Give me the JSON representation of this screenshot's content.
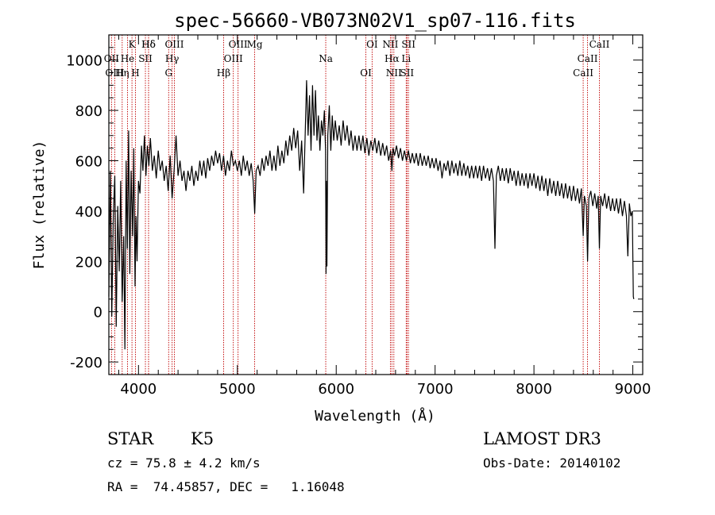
{
  "chart_data": {
    "type": "line",
    "title": "spec-56660-VB073N02V1_sp07-116.fits",
    "xlabel": "Wavelength (Å)",
    "ylabel": "Flux (relative)",
    "xlim": [
      3700,
      9100
    ],
    "ylim": [
      -250,
      1100
    ],
    "xticks": [
      4000,
      5000,
      6000,
      7000,
      8000,
      9000
    ],
    "yticks": [
      -200,
      0,
      200,
      400,
      600,
      800,
      1000
    ],
    "grid": false,
    "series": [
      {
        "name": "spectrum",
        "points": [
          [
            3700,
            60
          ],
          [
            3715,
            560
          ],
          [
            3730,
            -20
          ],
          [
            3745,
            380
          ],
          [
            3760,
            540
          ],
          [
            3775,
            -60
          ],
          [
            3790,
            420
          ],
          [
            3805,
            160
          ],
          [
            3820,
            520
          ],
          [
            3835,
            40
          ],
          [
            3850,
            300
          ],
          [
            3862,
            -150
          ],
          [
            3875,
            600
          ],
          [
            3887,
            250
          ],
          [
            3900,
            720
          ],
          [
            3912,
            150
          ],
          [
            3925,
            560
          ],
          [
            3940,
            300
          ],
          [
            3952,
            650
          ],
          [
            3965,
            100
          ],
          [
            3975,
            380
          ],
          [
            3985,
            200
          ],
          [
            4000,
            520
          ],
          [
            4015,
            470
          ],
          [
            4030,
            660
          ],
          [
            4045,
            560
          ],
          [
            4060,
            700
          ],
          [
            4075,
            540
          ],
          [
            4090,
            660
          ],
          [
            4105,
            580
          ],
          [
            4120,
            690
          ],
          [
            4140,
            560
          ],
          [
            4160,
            620
          ],
          [
            4180,
            530
          ],
          [
            4200,
            640
          ],
          [
            4220,
            560
          ],
          [
            4240,
            600
          ],
          [
            4260,
            520
          ],
          [
            4280,
            580
          ],
          [
            4300,
            480
          ],
          [
            4320,
            620
          ],
          [
            4340,
            450
          ],
          [
            4360,
            560
          ],
          [
            4380,
            700
          ],
          [
            4400,
            540
          ],
          [
            4420,
            600
          ],
          [
            4440,
            520
          ],
          [
            4460,
            560
          ],
          [
            4480,
            480
          ],
          [
            4500,
            560
          ],
          [
            4520,
            520
          ],
          [
            4540,
            580
          ],
          [
            4560,
            500
          ],
          [
            4580,
            560
          ],
          [
            4600,
            520
          ],
          [
            4620,
            600
          ],
          [
            4640,
            540
          ],
          [
            4660,
            600
          ],
          [
            4680,
            530
          ],
          [
            4700,
            610
          ],
          [
            4720,
            560
          ],
          [
            4740,
            620
          ],
          [
            4760,
            580
          ],
          [
            4780,
            640
          ],
          [
            4800,
            590
          ],
          [
            4820,
            630
          ],
          [
            4840,
            560
          ],
          [
            4860,
            620
          ],
          [
            4880,
            540
          ],
          [
            4900,
            600
          ],
          [
            4920,
            560
          ],
          [
            4940,
            640
          ],
          [
            4960,
            580
          ],
          [
            4980,
            600
          ],
          [
            5000,
            560
          ],
          [
            5020,
            600
          ],
          [
            5040,
            540
          ],
          [
            5060,
            620
          ],
          [
            5080,
            560
          ],
          [
            5100,
            600
          ],
          [
            5120,
            540
          ],
          [
            5140,
            590
          ],
          [
            5160,
            520
          ],
          [
            5175,
            390
          ],
          [
            5190,
            560
          ],
          [
            5210,
            580
          ],
          [
            5230,
            540
          ],
          [
            5250,
            610
          ],
          [
            5270,
            560
          ],
          [
            5290,
            620
          ],
          [
            5310,
            580
          ],
          [
            5330,
            640
          ],
          [
            5350,
            560
          ],
          [
            5370,
            620
          ],
          [
            5390,
            560
          ],
          [
            5410,
            660
          ],
          [
            5430,
            580
          ],
          [
            5450,
            640
          ],
          [
            5470,
            590
          ],
          [
            5490,
            680
          ],
          [
            5510,
            620
          ],
          [
            5530,
            700
          ],
          [
            5550,
            640
          ],
          [
            5570,
            730
          ],
          [
            5590,
            650
          ],
          [
            5610,
            720
          ],
          [
            5630,
            560
          ],
          [
            5650,
            680
          ],
          [
            5670,
            470
          ],
          [
            5690,
            760
          ],
          [
            5700,
            920
          ],
          [
            5715,
            700
          ],
          [
            5730,
            860
          ],
          [
            5745,
            640
          ],
          [
            5760,
            900
          ],
          [
            5775,
            700
          ],
          [
            5790,
            880
          ],
          [
            5805,
            680
          ],
          [
            5820,
            780
          ],
          [
            5835,
            640
          ],
          [
            5850,
            760
          ],
          [
            5865,
            700
          ],
          [
            5880,
            800
          ],
          [
            5892,
            640
          ],
          [
            5897,
            150
          ],
          [
            5900,
            520
          ],
          [
            5906,
            180
          ],
          [
            5915,
            700
          ],
          [
            5930,
            820
          ],
          [
            5945,
            640
          ],
          [
            5960,
            780
          ],
          [
            5975,
            680
          ],
          [
            5990,
            760
          ],
          [
            6010,
            680
          ],
          [
            6030,
            740
          ],
          [
            6050,
            660
          ],
          [
            6070,
            760
          ],
          [
            6090,
            680
          ],
          [
            6110,
            740
          ],
          [
            6130,
            660
          ],
          [
            6150,
            720
          ],
          [
            6170,
            640
          ],
          [
            6190,
            700
          ],
          [
            6210,
            640
          ],
          [
            6230,
            700
          ],
          [
            6250,
            640
          ],
          [
            6270,
            700
          ],
          [
            6290,
            630
          ],
          [
            6310,
            690
          ],
          [
            6330,
            620
          ],
          [
            6350,
            680
          ],
          [
            6370,
            640
          ],
          [
            6390,
            690
          ],
          [
            6410,
            630
          ],
          [
            6430,
            680
          ],
          [
            6450,
            620
          ],
          [
            6470,
            670
          ],
          [
            6490,
            620
          ],
          [
            6510,
            660
          ],
          [
            6530,
            600
          ],
          [
            6550,
            640
          ],
          [
            6563,
            560
          ],
          [
            6575,
            650
          ],
          [
            6590,
            620
          ],
          [
            6610,
            660
          ],
          [
            6630,
            610
          ],
          [
            6650,
            650
          ],
          [
            6670,
            600
          ],
          [
            6690,
            640
          ],
          [
            6710,
            600
          ],
          [
            6730,
            640
          ],
          [
            6750,
            590
          ],
          [
            6770,
            630
          ],
          [
            6790,
            590
          ],
          [
            6810,
            630
          ],
          [
            6830,
            580
          ],
          [
            6850,
            630
          ],
          [
            6870,
            580
          ],
          [
            6890,
            620
          ],
          [
            6910,
            580
          ],
          [
            6930,
            620
          ],
          [
            6950,
            570
          ],
          [
            6970,
            610
          ],
          [
            6990,
            570
          ],
          [
            7010,
            610
          ],
          [
            7030,
            560
          ],
          [
            7050,
            600
          ],
          [
            7070,
            530
          ],
          [
            7090,
            590
          ],
          [
            7110,
            560
          ],
          [
            7130,
            600
          ],
          [
            7150,
            540
          ],
          [
            7170,
            600
          ],
          [
            7190,
            550
          ],
          [
            7210,
            590
          ],
          [
            7230,
            540
          ],
          [
            7250,
            600
          ],
          [
            7270,
            540
          ],
          [
            7290,
            590
          ],
          [
            7310,
            540
          ],
          [
            7330,
            580
          ],
          [
            7350,
            530
          ],
          [
            7370,
            580
          ],
          [
            7390,
            530
          ],
          [
            7410,
            580
          ],
          [
            7430,
            530
          ],
          [
            7450,
            580
          ],
          [
            7470,
            520
          ],
          [
            7490,
            580
          ],
          [
            7510,
            530
          ],
          [
            7530,
            570
          ],
          [
            7550,
            520
          ],
          [
            7570,
            570
          ],
          [
            7590,
            520
          ],
          [
            7605,
            250
          ],
          [
            7620,
            540
          ],
          [
            7640,
            580
          ],
          [
            7660,
            520
          ],
          [
            7680,
            570
          ],
          [
            7700,
            520
          ],
          [
            7720,
            570
          ],
          [
            7740,
            510
          ],
          [
            7760,
            570
          ],
          [
            7780,
            520
          ],
          [
            7800,
            560
          ],
          [
            7820,
            500
          ],
          [
            7840,
            560
          ],
          [
            7860,
            500
          ],
          [
            7880,
            550
          ],
          [
            7900,
            500
          ],
          [
            7920,
            550
          ],
          [
            7940,
            490
          ],
          [
            7960,
            550
          ],
          [
            7980,
            500
          ],
          [
            8000,
            550
          ],
          [
            8020,
            490
          ],
          [
            8040,
            540
          ],
          [
            8060,
            480
          ],
          [
            8080,
            540
          ],
          [
            8100,
            480
          ],
          [
            8120,
            530
          ],
          [
            8140,
            460
          ],
          [
            8160,
            530
          ],
          [
            8180,
            470
          ],
          [
            8200,
            520
          ],
          [
            8220,
            460
          ],
          [
            8240,
            520
          ],
          [
            8260,
            460
          ],
          [
            8280,
            510
          ],
          [
            8300,
            450
          ],
          [
            8320,
            510
          ],
          [
            8340,
            450
          ],
          [
            8360,
            500
          ],
          [
            8380,
            440
          ],
          [
            8400,
            500
          ],
          [
            8420,
            440
          ],
          [
            8440,
            490
          ],
          [
            8460,
            430
          ],
          [
            8480,
            490
          ],
          [
            8498,
            300
          ],
          [
            8510,
            460
          ],
          [
            8530,
            420
          ],
          [
            8542,
            200
          ],
          [
            8555,
            450
          ],
          [
            8575,
            480
          ],
          [
            8595,
            420
          ],
          [
            8615,
            470
          ],
          [
            8635,
            410
          ],
          [
            8650,
            460
          ],
          [
            8662,
            250
          ],
          [
            8675,
            460
          ],
          [
            8695,
            420
          ],
          [
            8715,
            470
          ],
          [
            8735,
            410
          ],
          [
            8755,
            460
          ],
          [
            8775,
            400
          ],
          [
            8795,
            450
          ],
          [
            8815,
            400
          ],
          [
            8835,
            450
          ],
          [
            8855,
            390
          ],
          [
            8875,
            450
          ],
          [
            8895,
            380
          ],
          [
            8915,
            440
          ],
          [
            8935,
            380
          ],
          [
            8950,
            220
          ],
          [
            8965,
            430
          ],
          [
            8980,
            380
          ],
          [
            8995,
            400
          ],
          [
            9005,
            60
          ],
          [
            9010,
            50
          ]
        ]
      }
    ],
    "line_markers": [
      {
        "label": "Hδ",
        "wavelength": 4102
      },
      {
        "label": "OII",
        "wavelength": 3727
      },
      {
        "label": "OIII",
        "wavelength": 3760
      },
      {
        "label": "K",
        "wavelength": 3934
      },
      {
        "label": "He",
        "wavelength": 3889
      },
      {
        "label": "Hη",
        "wavelength": 3835
      },
      {
        "label": "Hδ",
        "wavelength": 4102
      },
      {
        "label": "SII",
        "wavelength": 4070
      },
      {
        "label": "H",
        "wavelength": 3969
      },
      {
        "label": "OIII",
        "wavelength": 4363
      },
      {
        "label": "Hγ",
        "wavelength": 4340
      },
      {
        "label": "G",
        "wavelength": 4305
      },
      {
        "label": "OIII",
        "wavelength": 5007
      },
      {
        "label": "OIII",
        "wavelength": 4959
      },
      {
        "label": "Hβ",
        "wavelength": 4861
      },
      {
        "label": "Mg",
        "wavelength": 5175
      },
      {
        "label": "Na",
        "wavelength": 5894
      },
      {
        "label": "OI",
        "wavelength": 6300
      },
      {
        "label": "OI",
        "wavelength": 6363
      },
      {
        "label": "Hα",
        "wavelength": 6563
      },
      {
        "label": "SII",
        "wavelength": 6716
      },
      {
        "label": "NII",
        "wavelength": 6548
      },
      {
        "label": "Li",
        "wavelength": 6708
      },
      {
        "label": "NII",
        "wavelength": 6583
      },
      {
        "label": "SII",
        "wavelength": 6731
      },
      {
        "label": "CaII",
        "wavelength": 8542
      },
      {
        "label": "CaII",
        "wavelength": 8498
      },
      {
        "label": "CaII",
        "wavelength": 8662
      }
    ]
  },
  "info": {
    "object_class": "STAR",
    "subclass": "K5",
    "survey": "LAMOST DR3",
    "redshift": "cz = 75.8 ± 4.2 km/s",
    "obs_date": "Obs-Date: 20140102",
    "coords": "RA =  74.45857, DEC =   1.16048"
  }
}
